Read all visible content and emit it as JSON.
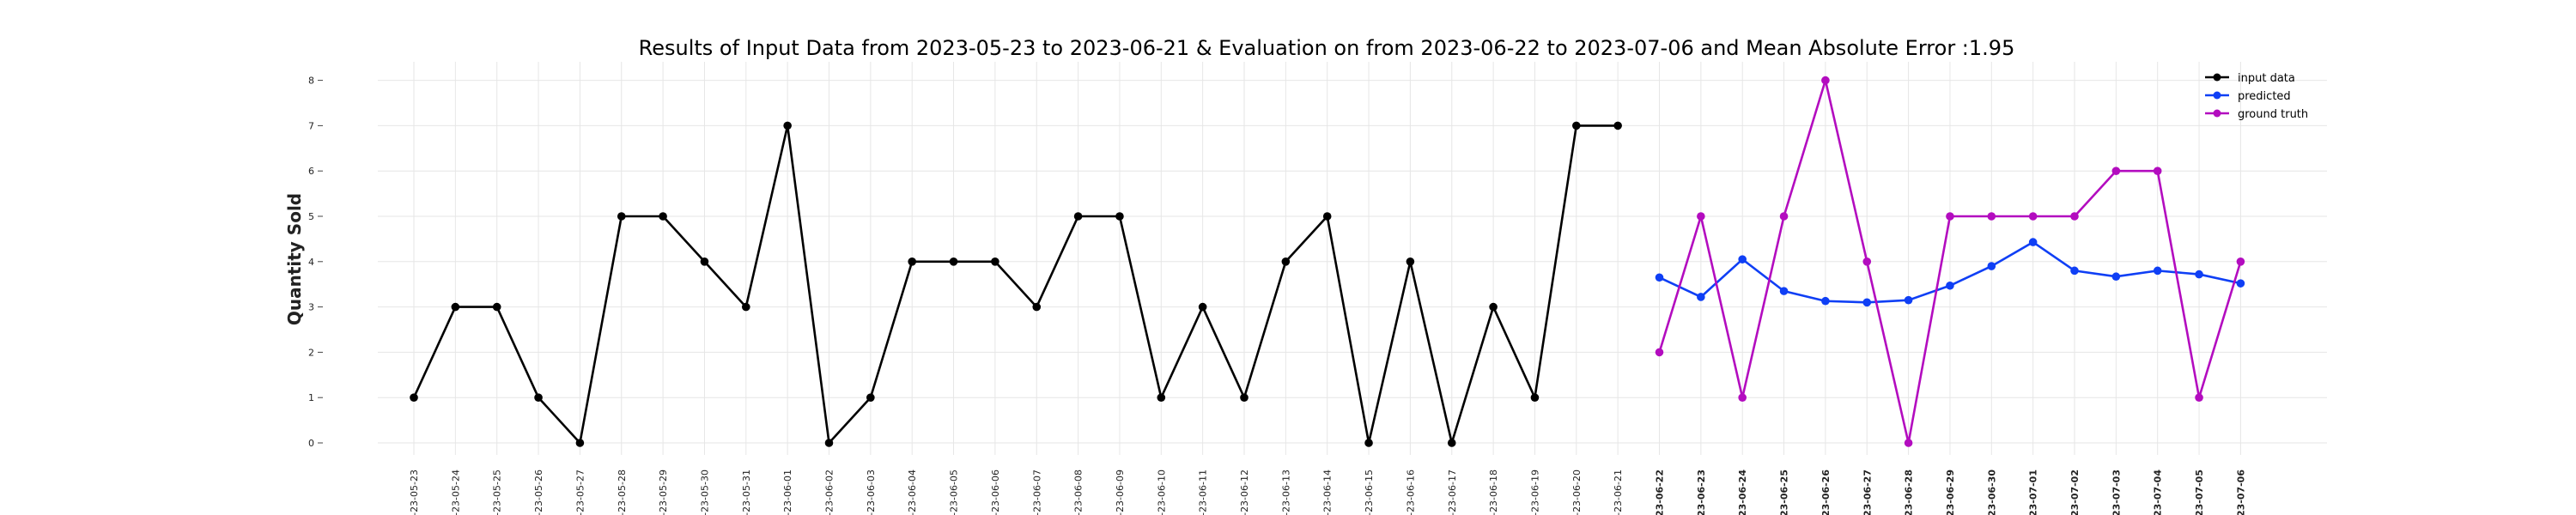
{
  "chart_data": {
    "type": "line",
    "title": "Results of Input Data from 2023-05-23 to 2023-06-21 & Evaluation on from 2023-06-22 to 2023-07-06 and Mean Absolute Error  :1.95",
    "xlabel": "",
    "ylabel": "Quantity Sold",
    "ylim": [
      0,
      8
    ],
    "yticks": [
      "0",
      "1",
      "2",
      "3",
      "4",
      "5",
      "6",
      "7",
      "8"
    ],
    "grid": true,
    "legend_position": "top-right",
    "x": [
      "2023-05-23",
      "2023-05-24",
      "2023-05-25",
      "2023-05-26",
      "2023-05-27",
      "2023-05-28",
      "2023-05-29",
      "2023-05-30",
      "2023-05-31",
      "2023-06-01",
      "2023-06-02",
      "2023-06-03",
      "2023-06-04",
      "2023-06-05",
      "2023-06-06",
      "2023-06-07",
      "2023-06-08",
      "2023-06-09",
      "2023-06-10",
      "2023-06-11",
      "2023-06-12",
      "2023-06-13",
      "2023-06-14",
      "2023-06-15",
      "2023-06-16",
      "2023-06-17",
      "2023-06-18",
      "2023-06-19",
      "2023-06-20",
      "2023-06-21",
      "2023-06-22",
      "2023-06-23",
      "2023-06-24",
      "2023-06-25",
      "2023-06-26",
      "2023-06-27",
      "2023-06-28",
      "2023-06-29",
      "2023-06-30",
      "2023-07-01",
      "2023-07-02",
      "2023-07-03",
      "2023-07-04",
      "2023-07-05",
      "2023-07-06"
    ],
    "xtick_labels": [
      "-23-05-23",
      "-23-05-24",
      "-23-05-25",
      "-23-05-26",
      "-23-05-27",
      "-23-05-28",
      "-23-05-29",
      "-23-05-30",
      "-23-05-31",
      "-23-06-01",
      "-23-06-02",
      "-23-06-03",
      "-23-06-04",
      "-23-06-05",
      "-23-06-06",
      "-23-06-07",
      "-23-06-08",
      "-23-06-09",
      "-23-06-10",
      "-23-06-11",
      "-23-06-12",
      "-23-06-13",
      "-23-06-14",
      "-23-06-15",
      "-23-06-16",
      "-23-06-17",
      "-23-06-18",
      "-23-06-19",
      "-23-06-20",
      "-23-06-21",
      "-23-06-22",
      "-23-06-23",
      "-23-06-24",
      "-23-06-25",
      "-23-06-26",
      "-23-06-27",
      "-23-06-28",
      "-23-06-29",
      "-23-06-30",
      "-23-07-01",
      "-23-07-02",
      "-23-07-03",
      "-23-07-04",
      "-23-07-05",
      "-23-07-06"
    ],
    "series": [
      {
        "name": "input data",
        "color": "#000000",
        "x": [
          "2023-05-23",
          "2023-05-24",
          "2023-05-25",
          "2023-05-26",
          "2023-05-27",
          "2023-05-28",
          "2023-05-29",
          "2023-05-30",
          "2023-05-31",
          "2023-06-01",
          "2023-06-02",
          "2023-06-03",
          "2023-06-04",
          "2023-06-05",
          "2023-06-06",
          "2023-06-07",
          "2023-06-08",
          "2023-06-09",
          "2023-06-10",
          "2023-06-11",
          "2023-06-12",
          "2023-06-13",
          "2023-06-14",
          "2023-06-15",
          "2023-06-16",
          "2023-06-17",
          "2023-06-18",
          "2023-06-19",
          "2023-06-20",
          "2023-06-21"
        ],
        "values": [
          1,
          3,
          3,
          1,
          0,
          5,
          5,
          4,
          3,
          7,
          0,
          1,
          4,
          4,
          4,
          3,
          5,
          5,
          1,
          3,
          1,
          4,
          5,
          0,
          4,
          0,
          3,
          1,
          7,
          7
        ]
      },
      {
        "name": "predicted",
        "color": "#0f3ff5",
        "x": [
          "2023-06-22",
          "2023-06-23",
          "2023-06-24",
          "2023-06-25",
          "2023-06-26",
          "2023-06-27",
          "2023-06-28",
          "2023-06-29",
          "2023-06-30",
          "2023-07-01",
          "2023-07-02",
          "2023-07-03",
          "2023-07-04",
          "2023-07-05",
          "2023-07-06"
        ],
        "values": [
          3.65,
          3.22,
          4.05,
          3.35,
          3.13,
          3.1,
          3.15,
          3.47,
          3.9,
          4.43,
          3.8,
          3.67,
          3.8,
          3.72,
          3.52
        ]
      },
      {
        "name": "ground truth",
        "color": "#b30cbf",
        "x": [
          "2023-06-22",
          "2023-06-23",
          "2023-06-24",
          "2023-06-25",
          "2023-06-26",
          "2023-06-27",
          "2023-06-28",
          "2023-06-29",
          "2023-06-30",
          "2023-07-01",
          "2023-07-02",
          "2023-07-03",
          "2023-07-04",
          "2023-07-05",
          "2023-07-06"
        ],
        "values": [
          2,
          5,
          1,
          5,
          8,
          4,
          0,
          5,
          5,
          5,
          5,
          6,
          6,
          1,
          4
        ]
      }
    ]
  }
}
